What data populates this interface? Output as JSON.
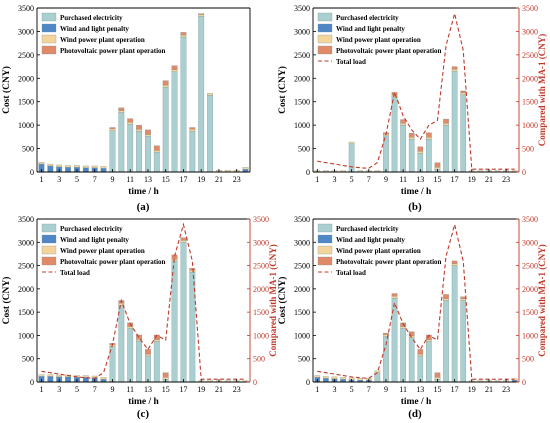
{
  "colors": {
    "purchased": "#a9cfd0",
    "wind_penalty": "#4f86c6",
    "wind_op": "#f3d59b",
    "pv_op": "#e08a68",
    "load": "#c0392b",
    "axis": "#000000",
    "right_axis": "#c0392b"
  },
  "legend_labels": {
    "purchased": "Purchased electricity",
    "wind_penalty": "Wind and light penalty",
    "wind_op": "Wind power plant operation",
    "pv_op": "Photovoltaic power plant operation",
    "load": "Total load"
  },
  "chart_data": [
    {
      "id": "a",
      "type": "bar",
      "caption": "(a)",
      "xlabel": "time / h",
      "ylabel": "Cost (CNY)",
      "ylim": [
        0,
        3500
      ],
      "yticks": [
        0,
        500,
        1000,
        1500,
        2000,
        2500,
        3000,
        3500
      ],
      "xticks": [
        "1",
        "3",
        "5",
        "7",
        "9",
        "11",
        "13",
        "15",
        "17",
        "19",
        "21",
        "23"
      ],
      "categories": [
        "1",
        "2",
        "3",
        "4",
        "5",
        "6",
        "7",
        "8",
        "9",
        "10",
        "11",
        "12",
        "13",
        "14",
        "15",
        "16",
        "17",
        "18",
        "19",
        "20",
        "21",
        "22",
        "23",
        "24"
      ],
      "stacked": true,
      "legend": [
        "purchased",
        "wind_penalty",
        "wind_op",
        "pv_op"
      ],
      "series": [
        {
          "key": "purchased",
          "name": "Purchased electricity",
          "values": [
            0,
            0,
            0,
            0,
            0,
            0,
            0,
            0,
            880,
            1270,
            1020,
            870,
            760,
            420,
            1810,
            2140,
            2880,
            870,
            3320,
            1640,
            0,
            0,
            0,
            0
          ]
        },
        {
          "key": "wind_penalty",
          "name": "Wind and light penalty",
          "values": [
            170,
            130,
            110,
            100,
            100,
            90,
            90,
            80,
            0,
            0,
            0,
            0,
            0,
            0,
            0,
            0,
            0,
            0,
            0,
            0,
            0,
            0,
            0,
            60
          ]
        },
        {
          "key": "wind_op",
          "name": "Wind power plant operation",
          "values": [
            40,
            40,
            40,
            40,
            40,
            40,
            40,
            40,
            40,
            40,
            40,
            40,
            40,
            40,
            40,
            40,
            40,
            40,
            40,
            40,
            40,
            40,
            40,
            40
          ]
        },
        {
          "key": "pv_op",
          "name": "Photovoltaic power plant operation",
          "values": [
            0,
            0,
            0,
            0,
            0,
            0,
            0,
            0,
            30,
            60,
            80,
            90,
            100,
            100,
            100,
            90,
            60,
            40,
            20,
            0,
            0,
            0,
            0,
            0
          ]
        }
      ]
    },
    {
      "id": "b",
      "type": "bar",
      "caption": "(b)",
      "xlabel": "time / h",
      "ylabel": "Cost (CNY)",
      "y2label": "Compared with MA-1 (CNY)",
      "ylim": [
        0,
        3500
      ],
      "yticks": [
        0,
        500,
        1000,
        1500,
        2000,
        2500,
        3000,
        3500
      ],
      "y2lim": [
        0,
        3500
      ],
      "y2ticks": [
        0,
        500,
        1000,
        1500,
        2000,
        2500,
        3000,
        3500
      ],
      "xticks": [
        "1",
        "3",
        "5",
        "7",
        "9",
        "11",
        "13",
        "15",
        "17",
        "19",
        "21",
        "23"
      ],
      "categories": [
        "1",
        "2",
        "3",
        "4",
        "5",
        "6",
        "7",
        "8",
        "9",
        "10",
        "11",
        "12",
        "13",
        "14",
        "15",
        "16",
        "17",
        "18",
        "19",
        "20",
        "21",
        "22",
        "23",
        "24"
      ],
      "stacked": true,
      "legend": [
        "purchased",
        "wind_penalty",
        "wind_op",
        "pv_op",
        "load"
      ],
      "series": [
        {
          "key": "purchased",
          "name": "Purchased electricity",
          "values": [
            0,
            0,
            0,
            0,
            600,
            0,
            0,
            0,
            770,
            1600,
            1000,
            700,
            400,
            700,
            60,
            1000,
            2150,
            1650,
            0,
            0,
            0,
            0,
            0,
            0
          ]
        },
        {
          "key": "wind_penalty",
          "name": "Wind and light penalty",
          "values": [
            0,
            0,
            0,
            0,
            0,
            0,
            0,
            0,
            0,
            0,
            0,
            0,
            0,
            0,
            0,
            0,
            0,
            0,
            0,
            0,
            0,
            0,
            0,
            0
          ]
        },
        {
          "key": "wind_op",
          "name": "Wind power plant operation",
          "values": [
            30,
            30,
            30,
            30,
            40,
            30,
            30,
            30,
            40,
            40,
            40,
            40,
            40,
            40,
            40,
            40,
            40,
            40,
            30,
            30,
            30,
            30,
            30,
            30
          ]
        },
        {
          "key": "pv_op",
          "name": "Photovoltaic power plant operation",
          "values": [
            0,
            0,
            0,
            0,
            0,
            0,
            0,
            0,
            30,
            60,
            80,
            90,
            100,
            100,
            100,
            90,
            60,
            40,
            0,
            0,
            0,
            0,
            0,
            0
          ]
        }
      ],
      "line": {
        "key": "load",
        "name": "Total load",
        "values": [
          230,
          200,
          170,
          140,
          110,
          90,
          80,
          200,
          800,
          1700,
          1200,
          900,
          700,
          1000,
          1100,
          2700,
          3380,
          2600,
          60,
          60,
          60,
          60,
          60,
          60
        ]
      }
    },
    {
      "id": "c",
      "type": "bar",
      "caption": "(c)",
      "xlabel": "time / h",
      "ylabel": "Cost (CNY)",
      "y2label": "Compared with MA-1 (CNY)",
      "ylim": [
        0,
        3500
      ],
      "yticks": [
        0,
        500,
        1000,
        1500,
        2000,
        2500,
        3000,
        3500
      ],
      "y2lim": [
        0,
        3500
      ],
      "y2ticks": [
        0,
        500,
        1000,
        1500,
        2000,
        2500,
        3000,
        3500
      ],
      "xticks": [
        "1",
        "3",
        "5",
        "7",
        "9",
        "11",
        "13",
        "15",
        "17",
        "19",
        "21",
        "23"
      ],
      "categories": [
        "1",
        "2",
        "3",
        "4",
        "5",
        "6",
        "7",
        "8",
        "9",
        "10",
        "11",
        "12",
        "13",
        "14",
        "15",
        "16",
        "17",
        "18",
        "19",
        "20",
        "21",
        "22",
        "23",
        "24"
      ],
      "stacked": true,
      "legend": [
        "purchased",
        "wind_penalty",
        "wind_op",
        "pv_op",
        "load"
      ],
      "series": [
        {
          "key": "purchased",
          "name": "Purchased electricity",
          "values": [
            0,
            0,
            0,
            0,
            0,
            0,
            0,
            0,
            760,
            1650,
            1150,
            880,
            560,
            870,
            60,
            2600,
            3000,
            2360,
            0,
            0,
            0,
            0,
            0,
            0
          ]
        },
        {
          "key": "wind_penalty",
          "name": "Wind and light penalty",
          "values": [
            120,
            120,
            110,
            110,
            100,
            100,
            90,
            60,
            0,
            0,
            0,
            0,
            0,
            0,
            0,
            0,
            0,
            0,
            0,
            0,
            0,
            0,
            0,
            0
          ]
        },
        {
          "key": "wind_op",
          "name": "Wind power plant operation",
          "values": [
            40,
            40,
            40,
            40,
            40,
            40,
            40,
            40,
            40,
            40,
            40,
            40,
            40,
            40,
            40,
            40,
            40,
            40,
            30,
            30,
            30,
            30,
            30,
            30
          ]
        },
        {
          "key": "pv_op",
          "name": "Photovoltaic power plant operation",
          "values": [
            0,
            0,
            0,
            0,
            0,
            0,
            0,
            0,
            30,
            60,
            80,
            90,
            100,
            100,
            100,
            90,
            60,
            40,
            0,
            0,
            0,
            0,
            0,
            0
          ]
        }
      ],
      "line": {
        "key": "load",
        "name": "Total load",
        "values": [
          230,
          200,
          170,
          140,
          110,
          90,
          80,
          200,
          800,
          1750,
          1250,
          950,
          700,
          1000,
          900,
          2700,
          3380,
          2600,
          60,
          60,
          60,
          60,
          60,
          60
        ]
      }
    },
    {
      "id": "d",
      "type": "bar",
      "caption": "(d)",
      "xlabel": "time / h",
      "ylabel": "Cost (CNY)",
      "y2label": "Compared with MA-1 (CNY)",
      "ylim": [
        0,
        3500
      ],
      "yticks": [
        0,
        500,
        1000,
        1500,
        2000,
        2500,
        3000,
        3500
      ],
      "y2lim": [
        0,
        3500
      ],
      "y2ticks": [
        0,
        500,
        1000,
        1500,
        2000,
        2500,
        3000,
        3500
      ],
      "xticks": [
        "1",
        "3",
        "5",
        "7",
        "9",
        "11",
        "13",
        "15",
        "17",
        "19",
        "21",
        "23"
      ],
      "categories": [
        "1",
        "2",
        "3",
        "4",
        "5",
        "6",
        "7",
        "8",
        "9",
        "10",
        "11",
        "12",
        "13",
        "14",
        "15",
        "16",
        "17",
        "18",
        "19",
        "20",
        "21",
        "22",
        "23",
        "24"
      ],
      "stacked": true,
      "legend": [
        "purchased",
        "wind_penalty",
        "wind_op",
        "pv_op",
        "load"
      ],
      "series": [
        {
          "key": "purchased",
          "name": "Purchased electricity",
          "values": [
            0,
            0,
            0,
            0,
            0,
            0,
            0,
            200,
            980,
            1800,
            1150,
            950,
            560,
            870,
            60,
            1750,
            2500,
            1750,
            0,
            0,
            0,
            0,
            0,
            0
          ]
        },
        {
          "key": "wind_penalty",
          "name": "Wind and light penalty",
          "values": [
            100,
            80,
            70,
            60,
            50,
            40,
            40,
            0,
            0,
            0,
            0,
            0,
            0,
            0,
            0,
            0,
            0,
            0,
            0,
            0,
            0,
            0,
            0,
            40
          ]
        },
        {
          "key": "wind_op",
          "name": "Wind power plant operation",
          "values": [
            40,
            40,
            40,
            40,
            40,
            40,
            40,
            40,
            40,
            40,
            40,
            40,
            40,
            40,
            40,
            40,
            40,
            40,
            30,
            30,
            30,
            30,
            30,
            30
          ]
        },
        {
          "key": "pv_op",
          "name": "Photovoltaic power plant operation",
          "values": [
            0,
            0,
            0,
            0,
            0,
            0,
            0,
            0,
            30,
            60,
            80,
            90,
            100,
            100,
            100,
            90,
            60,
            40,
            0,
            0,
            0,
            0,
            0,
            0
          ]
        }
      ],
      "line": {
        "key": "load",
        "name": "Total load",
        "values": [
          230,
          200,
          170,
          140,
          110,
          90,
          80,
          200,
          800,
          1700,
          1250,
          950,
          700,
          1000,
          900,
          2700,
          3380,
          2600,
          60,
          60,
          60,
          60,
          60,
          60
        ]
      }
    }
  ]
}
